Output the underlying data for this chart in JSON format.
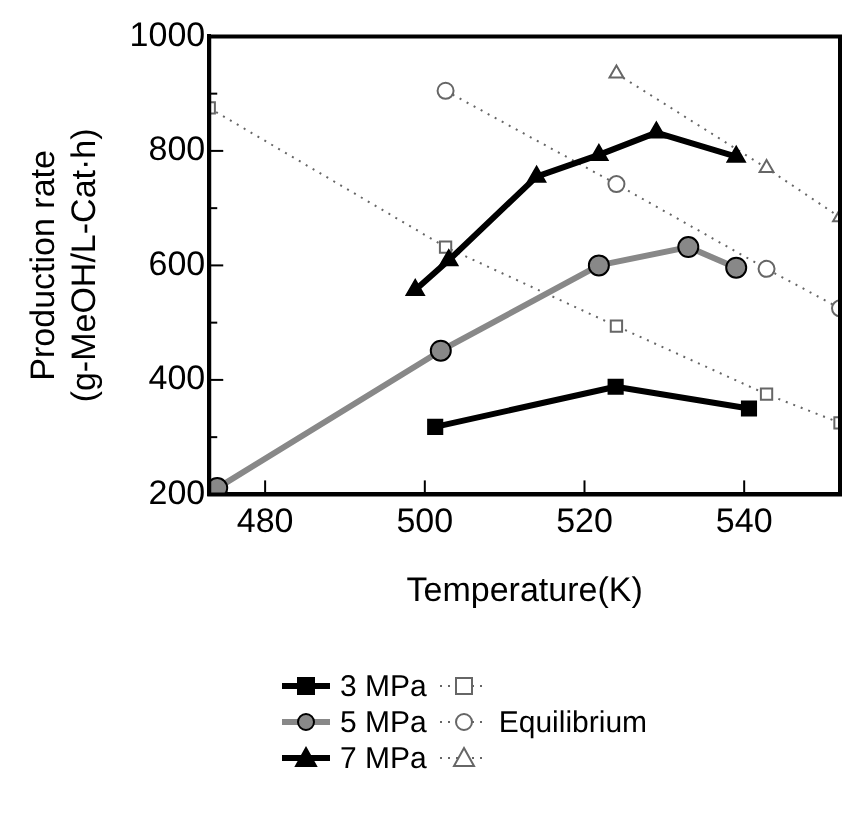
{
  "chart_data": {
    "type": "line",
    "xlabel": "Temperature(K)",
    "ylabel": "Production rate\n(g-MeOH/L-Cat·h)",
    "xlim": [
      473,
      552
    ],
    "xticks": [
      480,
      500,
      520,
      540
    ],
    "ylim": [
      200,
      1000
    ],
    "yticks": [
      200,
      {
        "value": 300,
        "label": null
      },
      400,
      {
        "value": 500,
        "label": null
      },
      600,
      {
        "value": 700,
        "label": null
      },
      800,
      {
        "value": 900,
        "label": null
      },
      1000
    ],
    "grid": false,
    "legend": "bottom",
    "series": [
      {
        "name": "3 MPa",
        "color": "#000000",
        "marker": "square",
        "line_style": "solid",
        "x": [
          501.3,
          523.9,
          540.6
        ],
        "values": [
          318,
          388,
          350
        ]
      },
      {
        "name": "5 MPa",
        "color": "#888888",
        "marker": "circle",
        "line_style": "solid",
        "x": [
          474,
          502,
          521.8,
          533,
          539
        ],
        "values": [
          211,
          451,
          600,
          632,
          596
        ]
      },
      {
        "name": "7 MPa",
        "color": "#000000",
        "marker": "triangle",
        "line_style": "solid",
        "x": [
          498.8,
          503,
          514,
          521.8,
          529,
          539
        ],
        "values": [
          557,
          609,
          755,
          793,
          832,
          790
        ]
      },
      {
        "color": "#666666",
        "marker": "square",
        "line_style": "dotted",
        "x": [
          473,
          502.6,
          524,
          542.8,
          552
        ],
        "values": [
          875,
          632,
          494,
          375,
          325
        ]
      },
      {
        "name": "Equilibrium",
        "color": "#666666",
        "marker": "circle",
        "line_style": "dotted",
        "x": [
          502.6,
          524,
          542.8,
          552
        ],
        "values": [
          905,
          742,
          594,
          525
        ]
      },
      {
        "color": "#666666",
        "marker": "triangle",
        "line_style": "dotted",
        "x": [
          524,
          542.8,
          552
        ],
        "values": [
          935,
          770,
          684
        ]
      }
    ]
  }
}
